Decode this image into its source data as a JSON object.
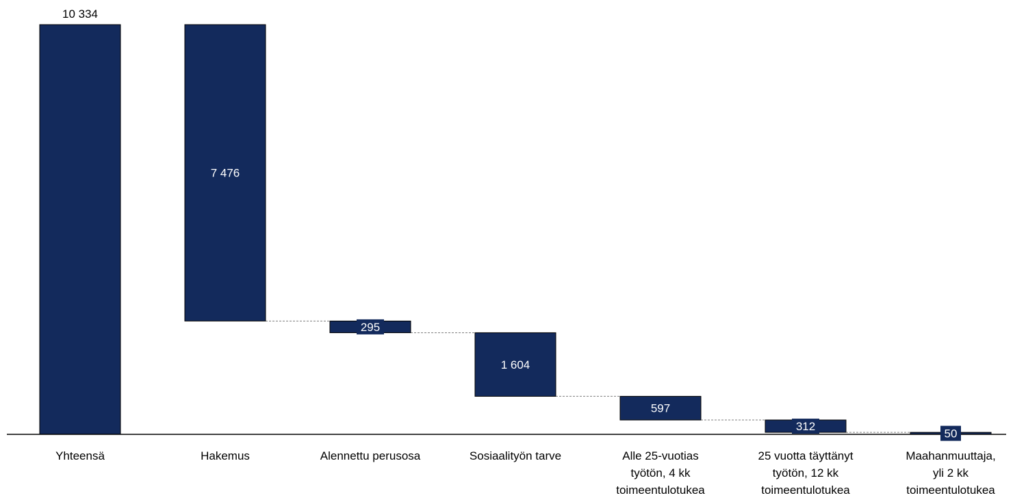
{
  "chart_data": {
    "type": "waterfall",
    "title": "",
    "xlabel": "",
    "ylabel": "",
    "ylim": [
      0,
      10334
    ],
    "categories": [
      [
        "Yhteensä"
      ],
      [
        "Hakemus"
      ],
      [
        "Alennettu perusosa"
      ],
      [
        "Sosiaalityön tarve"
      ],
      [
        "Alle 25-vuotias",
        "työtön, 4 kk",
        "toimeentulotukea"
      ],
      [
        "25 vuotta täyttänyt",
        "työtön, 12 kk",
        "toimeentulotukea"
      ],
      [
        "Maahanmuuttaja,",
        "yli 2 kk",
        "toimeentulotukea"
      ]
    ],
    "values": [
      10334,
      7476,
      295,
      1604,
      597,
      312,
      50
    ],
    "value_labels": [
      "10 334",
      "7 476",
      "295",
      "1 604",
      "597",
      "312",
      "50"
    ],
    "bar_kinds": [
      "total",
      "step",
      "step",
      "step",
      "step",
      "step",
      "step"
    ],
    "grid": false,
    "legend": "none",
    "colors": {
      "bar": "#132a5c",
      "bar_outline": "#000000",
      "connector": "#7f7f7f",
      "axis": "#000000",
      "label_on_bar": "#ffffff",
      "label_outside": "#000000"
    }
  }
}
